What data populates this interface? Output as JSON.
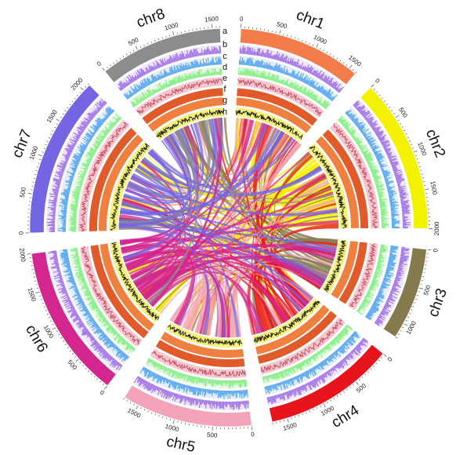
{
  "chart_data": {
    "type": "circos",
    "track_letters": [
      "a",
      "b",
      "c",
      "d",
      "e",
      "f",
      "g",
      "h"
    ],
    "chromosomes": [
      {
        "name": "chr1",
        "length": 1600,
        "color": "#f47c4a",
        "tick_labels": [
          "0",
          "500",
          "1000",
          "1500"
        ]
      },
      {
        "name": "chr2",
        "length": 2000,
        "color": "#f5f200",
        "tick_labels": [
          "0",
          "500",
          "1000",
          "1500",
          "2000"
        ]
      },
      {
        "name": "chr3",
        "length": 1200,
        "color": "#857a4e",
        "tick_labels": [
          "0",
          "500",
          "1000"
        ]
      },
      {
        "name": "chr4",
        "length": 1700,
        "color": "#e8141c",
        "tick_labels": [
          "0",
          "500",
          "1000",
          "1500"
        ]
      },
      {
        "name": "chr5",
        "length": 1700,
        "color": "#f4a4b8",
        "tick_labels": [
          "0",
          "500",
          "1000",
          "1500"
        ]
      },
      {
        "name": "chr6",
        "length": 2000,
        "color": "#d4268f",
        "tick_labels": [
          "0",
          "500",
          "1000",
          "1500",
          "2000"
        ]
      },
      {
        "name": "chr7",
        "length": 2100,
        "color": "#7466e2",
        "tick_labels": [
          "0",
          "500",
          "1000",
          "1500",
          "2000"
        ]
      },
      {
        "name": "chr8",
        "length": 1600,
        "color": "#8c8c8c",
        "tick_labels": [
          "0",
          "500",
          "1000",
          "1500"
        ]
      }
    ],
    "tracks": [
      {
        "letter": "a",
        "kind": "ideogram"
      },
      {
        "letter": "b",
        "kind": "histogram",
        "color": "#a070e8"
      },
      {
        "letter": "c",
        "kind": "histogram",
        "color": "#5aa8f0"
      },
      {
        "letter": "d",
        "kind": "histogram",
        "color": "#8cf08c"
      },
      {
        "letter": "e",
        "kind": "line",
        "color": "#c83c50",
        "background": "#f4c8d0"
      },
      {
        "letter": "f",
        "kind": "heat",
        "color": "#e05a2a"
      },
      {
        "letter": "g",
        "kind": "heat",
        "color": "#f08040"
      },
      {
        "letter": "h",
        "kind": "line",
        "color": "#111111",
        "background": "#f5f27a"
      }
    ]
  }
}
